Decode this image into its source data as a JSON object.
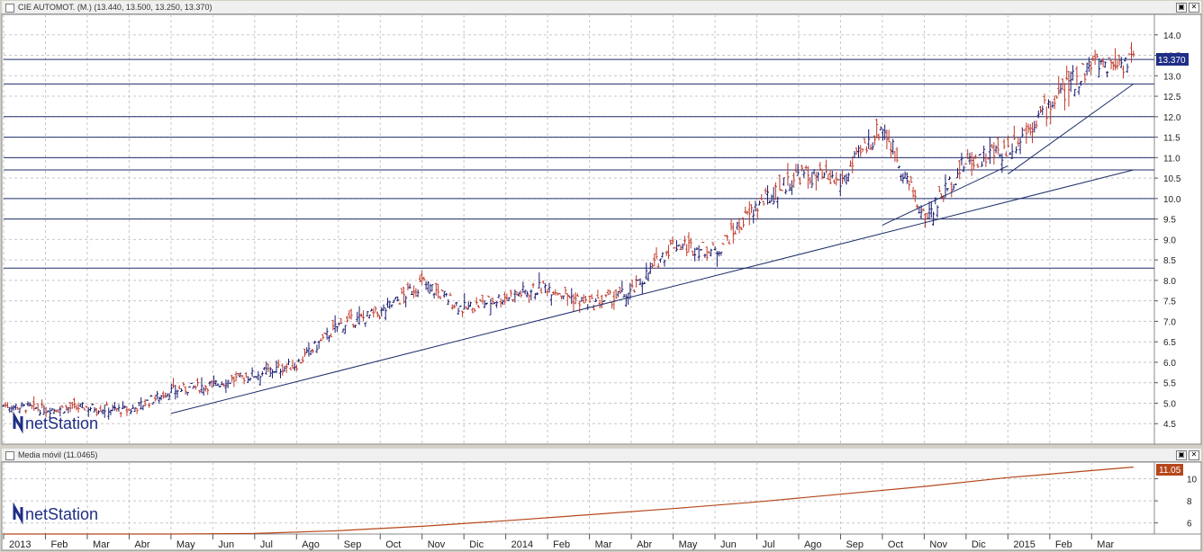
{
  "main_panel": {
    "title": "CIE AUTOMOT. (M.) (13.440, 13.500, 13.250, 13.370)",
    "last_price_badge": "13.370",
    "logo_text": "netStation"
  },
  "indicator_panel": {
    "title": "Media móvil (11.0465)",
    "last_value_badge": "11.05",
    "logo_text": "netStation"
  },
  "colors": {
    "price_bars": "#1a1a6e",
    "down_bars": "#c0392b",
    "moving_average": "#b5471b",
    "badge": "#1f2e86",
    "badge_ma": "#b5471b",
    "grid": "#c8c8c8",
    "levels": "#1f2e6b"
  },
  "chart_data": [
    {
      "type": "ohlc",
      "title": "CIE AUTOMOT. (M.) (13.440, 13.500, 13.250, 13.370)",
      "ylim": [
        4.0,
        14.5
      ],
      "y_ticks": [
        "4.5",
        "5.0",
        "5.5",
        "6.0",
        "6.5",
        "7.0",
        "7.5",
        "8.0",
        "8.5",
        "9.0",
        "9.5",
        "10.0",
        "10.5",
        "11.0",
        "11.5",
        "12.0",
        "12.5",
        "13.0",
        "13.5",
        "14.0"
      ],
      "x_tick_labels": [
        "2013",
        "Feb",
        "Mar",
        "Abr",
        "May",
        "Jun",
        "Jul",
        "Ago",
        "Sep",
        "Oct",
        "Nov",
        "Dic",
        "2014",
        "Feb",
        "Mar",
        "Abr",
        "May",
        "Jun",
        "Jul",
        "Ago",
        "Sep",
        "Oct",
        "Nov",
        "Dic",
        "2015",
        "Feb",
        "Mar"
      ],
      "last": {
        "open": 13.44,
        "high": 13.5,
        "low": 13.25,
        "close": 13.37
      },
      "price_path": [
        [
          "2013-01",
          4.95
        ],
        [
          "2013-02",
          4.85
        ],
        [
          "2013-03",
          4.9
        ],
        [
          "2013-04",
          4.82
        ],
        [
          "2013-05",
          5.3
        ],
        [
          "2013-06",
          5.45
        ],
        [
          "2013-07",
          5.7
        ],
        [
          "2013-08",
          5.95
        ],
        [
          "2013-09",
          6.9
        ],
        [
          "2013-10",
          7.2
        ],
        [
          "2013-11",
          7.95
        ],
        [
          "2013-12",
          7.3
        ],
        [
          "2014-01",
          7.6
        ],
        [
          "2014-02",
          7.85
        ],
        [
          "2014-03",
          7.4
        ],
        [
          "2014-04",
          7.7
        ],
        [
          "2014-05",
          8.9
        ],
        [
          "2014-06",
          8.7
        ],
        [
          "2014-07",
          9.8
        ],
        [
          "2014-08",
          10.6
        ],
        [
          "2014-09",
          10.4
        ],
        [
          "2014-10",
          11.8
        ],
        [
          "2014-11",
          9.5
        ],
        [
          "2014-12",
          10.9
        ],
        [
          "2015-01",
          11.2
        ],
        [
          "2015-02",
          12.3
        ],
        [
          "2015-03",
          13.3
        ],
        [
          "2015-03-end",
          13.37
        ]
      ],
      "horizontal_levels": [
        8.3,
        9.5,
        10.0,
        10.7,
        11.0,
        11.5,
        12.0,
        12.8,
        13.4
      ],
      "trendlines": [
        {
          "from": [
            "2013-05",
            4.75
          ],
          "to": [
            "2015-03-end",
            10.7
          ]
        },
        {
          "from": [
            "2014-10",
            9.35
          ],
          "to": [
            "2015-01",
            10.8
          ]
        },
        {
          "from": [
            "2015-01",
            10.6
          ],
          "to": [
            "2015-03-end",
            12.8
          ]
        }
      ]
    },
    {
      "type": "line",
      "title": "Media móvil (11.0465)",
      "ylim": [
        5.0,
        11.5
      ],
      "y_ticks": [
        "6",
        "8",
        "10"
      ],
      "last_value": 11.05,
      "x": [
        "2013-01",
        "2013-03",
        "2013-05",
        "2013-07",
        "2013-09",
        "2013-11",
        "2014-01",
        "2014-03",
        "2014-05",
        "2014-07",
        "2014-09",
        "2014-11",
        "2015-01",
        "2015-03-end"
      ],
      "values": [
        5.0,
        5.0,
        5.0,
        5.05,
        5.3,
        5.7,
        6.2,
        6.75,
        7.3,
        7.9,
        8.6,
        9.3,
        10.1,
        11.05
      ]
    }
  ]
}
